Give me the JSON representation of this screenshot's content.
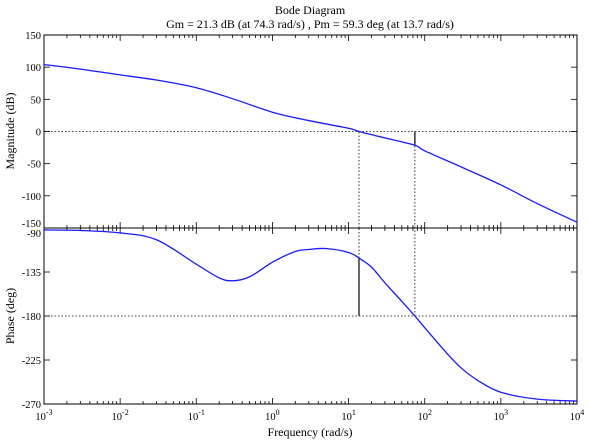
{
  "chart_data": {
    "type": "line",
    "title": "Bode Diagram",
    "subtitle": "Gm = 21.3 dB (at 74.3 rad/s) ,  Pm = 59.3 deg (at 13.7 rad/s)",
    "xlabel": "Frequency  (rad/s)",
    "xscale": "log",
    "xlim": [
      0.001,
      10000
    ],
    "x_ticks": [
      0.001,
      0.01,
      0.1,
      1,
      10,
      100,
      1000,
      10000
    ],
    "x_tick_labels": [
      {
        "base": "10",
        "exp": "-3"
      },
      {
        "base": "10",
        "exp": "-2"
      },
      {
        "base": "10",
        "exp": "-1"
      },
      {
        "base": "10",
        "exp": "0"
      },
      {
        "base": "10",
        "exp": "1"
      },
      {
        "base": "10",
        "exp": "2"
      },
      {
        "base": "10",
        "exp": "3"
      },
      {
        "base": "10",
        "exp": "4"
      }
    ],
    "gain_margin": {
      "value_db": 21.3,
      "frequency": 74.3
    },
    "phase_margin": {
      "value_deg": 59.3,
      "frequency": 13.7
    },
    "panels": [
      {
        "id": "magnitude",
        "ylabel": "Magnitude (dB)",
        "ylim": [
          -150,
          150
        ],
        "y_ticks": [
          150,
          100,
          50,
          0,
          -50,
          -100,
          -150
        ],
        "y_tick_labels": [
          "150",
          "100",
          "50",
          "0",
          "-50",
          "-100",
          "-150"
        ],
        "reference_line": 0,
        "series": [
          {
            "x": [
              0.001,
              0.003,
              0.01,
              0.03,
              0.1,
              0.3,
              1,
              3,
              10,
              13.7,
              30,
              74.3,
              100,
              300,
              1000,
              3000,
              10000
            ],
            "y": [
              104,
              97,
              88,
              80,
              68,
              51,
              30,
              17,
              5,
              0,
              -10,
              -21.3,
              -30,
              -55,
              -83,
              -112,
              -141
            ]
          }
        ]
      },
      {
        "id": "phase",
        "ylabel": "Phase (deg)",
        "ylim": [
          -270,
          -90
        ],
        "y_ticks": [
          -90,
          -135,
          -180,
          -225,
          -270
        ],
        "y_tick_labels": [
          "-90",
          "-135",
          "-180",
          "-225",
          "-270"
        ],
        "reference_line": -180,
        "series": [
          {
            "x": [
              0.001,
              0.003,
              0.01,
              0.03,
              0.1,
              0.2,
              0.3,
              0.5,
              1,
              2,
              3,
              5,
              10,
              13.7,
              20,
              30,
              50,
              74.3,
              100,
              200,
              300,
              500,
              1000,
              3000,
              10000
            ],
            "y": [
              -92,
              -92.5,
              -95,
              -102,
              -127,
              -141,
              -144,
              -140,
              -125,
              -114,
              -112,
              -111,
              -115,
              -120.7,
              -130,
              -146,
              -165,
              -180,
              -192,
              -219,
              -233,
              -246,
              -258,
              -265,
              -267
            ]
          }
        ]
      }
    ],
    "markers": [
      {
        "panel": "magnitude",
        "x": 13.7,
        "from": -150,
        "to": 0,
        "style": "dotted"
      },
      {
        "panel": "magnitude",
        "x": 74.3,
        "from": -150,
        "to": -21.3,
        "style": "dotted"
      },
      {
        "panel": "magnitude",
        "x": 74.3,
        "from": -21.3,
        "to": 0,
        "style": "solid"
      },
      {
        "panel": "phase",
        "x": 13.7,
        "from": -120.7,
        "to": -90,
        "style": "dotted"
      },
      {
        "panel": "phase",
        "x": 13.7,
        "from": -180,
        "to": -120.7,
        "style": "solid"
      },
      {
        "panel": "phase",
        "x": 74.3,
        "from": -180,
        "to": -90,
        "style": "dotted"
      }
    ],
    "colors": {
      "curve": "#1a1aff",
      "axes": "#000000"
    }
  }
}
